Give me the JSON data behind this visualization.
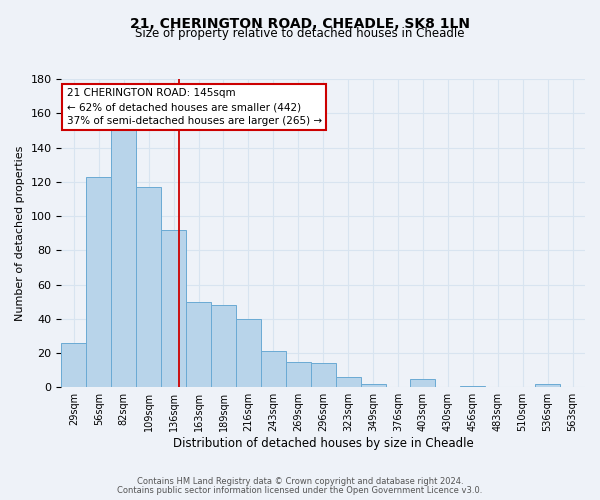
{
  "title": "21, CHERINGTON ROAD, CHEADLE, SK8 1LN",
  "subtitle": "Size of property relative to detached houses in Cheadle",
  "xlabel": "Distribution of detached houses by size in Cheadle",
  "ylabel": "Number of detached properties",
  "bin_labels": [
    "29sqm",
    "56sqm",
    "82sqm",
    "109sqm",
    "136sqm",
    "163sqm",
    "189sqm",
    "216sqm",
    "243sqm",
    "269sqm",
    "296sqm",
    "323sqm",
    "349sqm",
    "376sqm",
    "403sqm",
    "430sqm",
    "456sqm",
    "483sqm",
    "510sqm",
    "536sqm",
    "563sqm"
  ],
  "bar_values": [
    26,
    123,
    150,
    117,
    92,
    50,
    48,
    40,
    21,
    15,
    14,
    6,
    2,
    0,
    5,
    0,
    1,
    0,
    0,
    2,
    0
  ],
  "bar_color": "#b8d4ea",
  "bar_edge_color": "#6aaad4",
  "ylim": [
    0,
    180
  ],
  "yticks": [
    0,
    20,
    40,
    60,
    80,
    100,
    120,
    140,
    160,
    180
  ],
  "vline_x": 4.72,
  "vline_color": "#cc0000",
  "annotation_title": "21 CHERINGTON ROAD: 145sqm",
  "annotation_line1": "← 62% of detached houses are smaller (442)",
  "annotation_line2": "37% of semi-detached houses are larger (265) →",
  "footer1": "Contains HM Land Registry data © Crown copyright and database right 2024.",
  "footer2": "Contains public sector information licensed under the Open Government Licence v3.0.",
  "background_color": "#eef2f8",
  "grid_color": "#d8e4f0"
}
